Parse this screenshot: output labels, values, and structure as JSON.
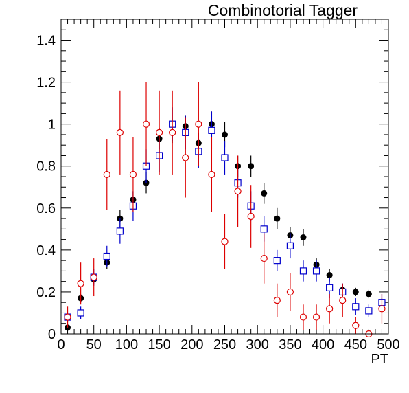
{
  "chart_data": {
    "type": "scatter",
    "title": "Combinotorial Tagger",
    "xlabel": "PT",
    "ylabel": "",
    "xlim": [
      0,
      500
    ],
    "ylim": [
      0,
      1.5
    ],
    "x_ticks": [
      "0",
      "50",
      "100",
      "150",
      "200",
      "250",
      "300",
      "350",
      "400",
      "450",
      "500"
    ],
    "y_ticks": [
      "0",
      "0.2",
      "0.4",
      "0.6",
      "0.8",
      "1",
      "1.2",
      "1.4"
    ],
    "grid": false,
    "legend": "none",
    "series": [
      {
        "marker": "filled-circle",
        "color": "#000000",
        "points": [
          {
            "x": 10,
            "y": 0.03,
            "err": 0.01
          },
          {
            "x": 30,
            "y": 0.17,
            "err": 0.02
          },
          {
            "x": 50,
            "y": 0.26,
            "err": 0.02
          },
          {
            "x": 70,
            "y": 0.34,
            "err": 0.03
          },
          {
            "x": 90,
            "y": 0.55,
            "err": 0.04
          },
          {
            "x": 110,
            "y": 0.64,
            "err": 0.04
          },
          {
            "x": 130,
            "y": 0.72,
            "err": 0.05
          },
          {
            "x": 150,
            "y": 0.93,
            "err": 0.05
          },
          {
            "x": 170,
            "y": 0.96,
            "err": 0.05
          },
          {
            "x": 190,
            "y": 0.99,
            "err": 0.05
          },
          {
            "x": 210,
            "y": 0.91,
            "err": 0.05
          },
          {
            "x": 230,
            "y": 1.0,
            "err": 0.06
          },
          {
            "x": 250,
            "y": 0.95,
            "err": 0.06
          },
          {
            "x": 270,
            "y": 0.8,
            "err": 0.05
          },
          {
            "x": 290,
            "y": 0.8,
            "err": 0.05
          },
          {
            "x": 310,
            "y": 0.67,
            "err": 0.05
          },
          {
            "x": 330,
            "y": 0.55,
            "err": 0.05
          },
          {
            "x": 350,
            "y": 0.47,
            "err": 0.04
          },
          {
            "x": 370,
            "y": 0.46,
            "err": 0.04
          },
          {
            "x": 390,
            "y": 0.33,
            "err": 0.03
          },
          {
            "x": 410,
            "y": 0.28,
            "err": 0.03
          },
          {
            "x": 430,
            "y": 0.21,
            "err": 0.03
          },
          {
            "x": 450,
            "y": 0.2,
            "err": 0.02
          },
          {
            "x": 470,
            "y": 0.19,
            "err": 0.02
          },
          {
            "x": 490,
            "y": 0.15,
            "err": 0.02
          }
        ]
      },
      {
        "marker": "open-square",
        "color": "#0000cc",
        "points": [
          {
            "x": 10,
            "y": 0.08,
            "err": 0.02
          },
          {
            "x": 30,
            "y": 0.1,
            "err": 0.03
          },
          {
            "x": 50,
            "y": 0.27,
            "err": 0.04
          },
          {
            "x": 70,
            "y": 0.37,
            "err": 0.05
          },
          {
            "x": 90,
            "y": 0.49,
            "err": 0.06
          },
          {
            "x": 110,
            "y": 0.61,
            "err": 0.07
          },
          {
            "x": 130,
            "y": 0.8,
            "err": 0.08
          },
          {
            "x": 150,
            "y": 0.85,
            "err": 0.08
          },
          {
            "x": 170,
            "y": 1.0,
            "err": 0.08
          },
          {
            "x": 190,
            "y": 0.96,
            "err": 0.08
          },
          {
            "x": 210,
            "y": 0.87,
            "err": 0.08
          },
          {
            "x": 230,
            "y": 0.97,
            "err": 0.09
          },
          {
            "x": 250,
            "y": 0.84,
            "err": 0.08
          },
          {
            "x": 270,
            "y": 0.72,
            "err": 0.07
          },
          {
            "x": 290,
            "y": 0.61,
            "err": 0.07
          },
          {
            "x": 310,
            "y": 0.5,
            "err": 0.06
          },
          {
            "x": 330,
            "y": 0.35,
            "err": 0.05
          },
          {
            "x": 350,
            "y": 0.42,
            "err": 0.06
          },
          {
            "x": 370,
            "y": 0.3,
            "err": 0.05
          },
          {
            "x": 390,
            "y": 0.3,
            "err": 0.05
          },
          {
            "x": 410,
            "y": 0.22,
            "err": 0.05
          },
          {
            "x": 430,
            "y": 0.2,
            "err": 0.04
          },
          {
            "x": 450,
            "y": 0.13,
            "err": 0.04
          },
          {
            "x": 470,
            "y": 0.11,
            "err": 0.03
          },
          {
            "x": 490,
            "y": 0.15,
            "err": 0.04
          }
        ]
      },
      {
        "marker": "open-circle",
        "color": "#dd0000",
        "points": [
          {
            "x": 10,
            "y": 0.08,
            "err": 0.05
          },
          {
            "x": 30,
            "y": 0.24,
            "err": 0.1
          },
          {
            "x": 50,
            "y": 0.27,
            "err": 0.09
          },
          {
            "x": 70,
            "y": 0.76,
            "err": 0.17
          },
          {
            "x": 90,
            "y": 0.96,
            "err": 0.2
          },
          {
            "x": 110,
            "y": 0.76,
            "err": 0.18
          },
          {
            "x": 130,
            "y": 1.0,
            "err": 0.2
          },
          {
            "x": 150,
            "y": 0.96,
            "err": 0.2
          },
          {
            "x": 170,
            "y": 0.96,
            "err": 0.2
          },
          {
            "x": 190,
            "y": 0.84,
            "err": 0.19
          },
          {
            "x": 210,
            "y": 1.0,
            "err": 0.2
          },
          {
            "x": 230,
            "y": 0.76,
            "err": 0.18
          },
          {
            "x": 250,
            "y": 0.44,
            "err": 0.13
          },
          {
            "x": 270,
            "y": 0.68,
            "err": 0.17
          },
          {
            "x": 290,
            "y": 0.56,
            "err": 0.15
          },
          {
            "x": 310,
            "y": 0.36,
            "err": 0.12
          },
          {
            "x": 330,
            "y": 0.16,
            "err": 0.08
          },
          {
            "x": 350,
            "y": 0.2,
            "err": 0.09
          },
          {
            "x": 370,
            "y": 0.08,
            "err": 0.06
          },
          {
            "x": 390,
            "y": 0.08,
            "err": 0.06
          },
          {
            "x": 410,
            "y": 0.12,
            "err": 0.07
          },
          {
            "x": 430,
            "y": 0.16,
            "err": 0.08
          },
          {
            "x": 450,
            "y": 0.04,
            "err": 0.04
          },
          {
            "x": 470,
            "y": 0.0,
            "err": 0.0
          },
          {
            "x": 490,
            "y": 0.12,
            "err": 0.07
          }
        ]
      }
    ]
  }
}
